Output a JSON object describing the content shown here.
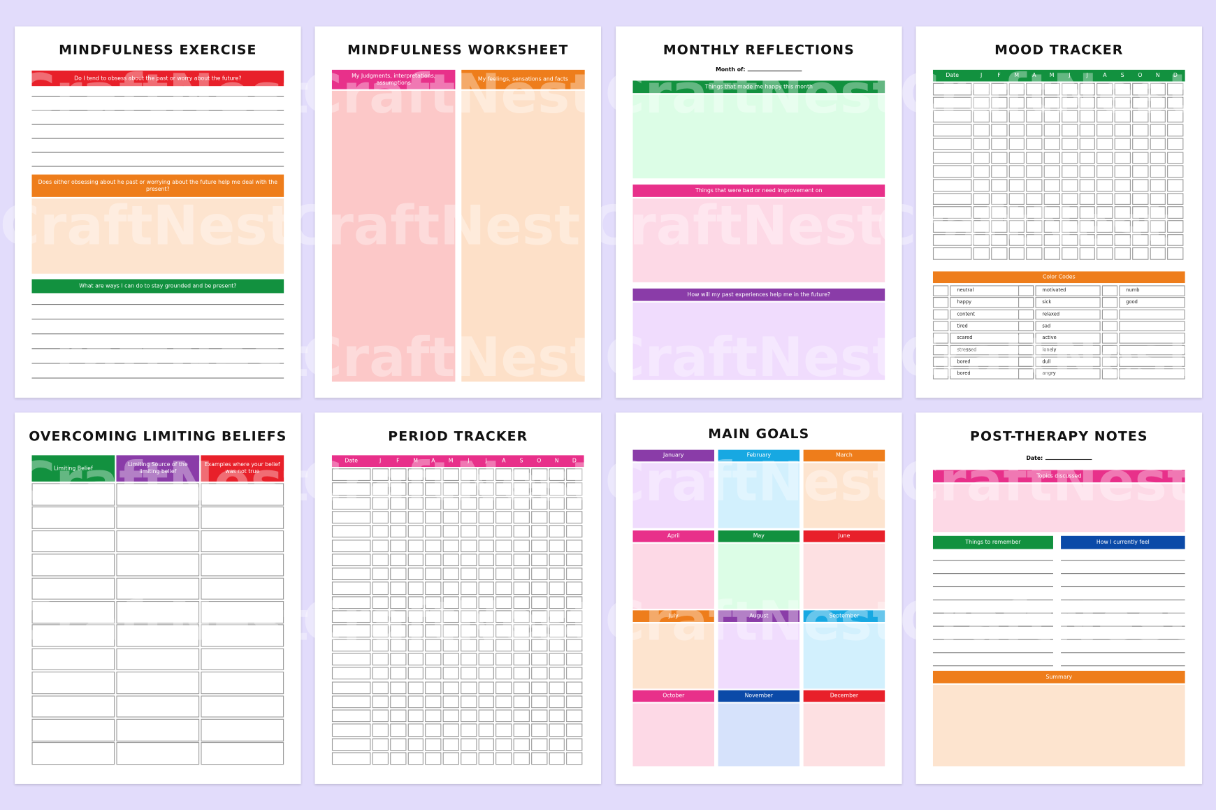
{
  "watermark": "CraftNest",
  "pages": [
    {
      "title": "MINDFULNESS EXERCISE",
      "sections": [
        "Do I tend to obsess about the past or worry about the future?",
        "Does either obsessing about he past or worrying about the future help me deal with the present?",
        "What are ways I can do to stay grounded and be present?"
      ]
    },
    {
      "title": "MINDFULNESS WORKSHEET",
      "columns": [
        "My Judgments, interpretations, assumptions",
        "My feelings, sensations and facts"
      ]
    },
    {
      "title": "MONTHLY REFLECTIONS",
      "month_label": "Month of:",
      "sections": [
        "Things that made me happy this month",
        "Things that were bad or need improvement on",
        "How will my past experiences help me in the future?"
      ]
    },
    {
      "title": "MOOD TRACKER",
      "header": [
        "Date",
        "J",
        "F",
        "M",
        "A",
        "M",
        "J",
        "J",
        "A",
        "S",
        "O",
        "N",
        "D"
      ],
      "color_codes_title": "Color Codes",
      "color_codes": [
        [
          "neutral",
          "happy",
          "content",
          "tired",
          "scared",
          "stressed",
          "bored",
          "bored"
        ],
        [
          "motivated",
          "sick",
          "relaxed",
          "sad",
          "active",
          "lonely",
          "dull",
          "angry"
        ],
        [
          "numb",
          "good"
        ]
      ]
    },
    {
      "title": "OVERCOMING LIMITING BELIEFS",
      "columns": [
        "Limiting Belief",
        "Limiting Source of the limiting belief",
        "Examples where your belief was not true"
      ]
    },
    {
      "title": "PERIOD TRACKER",
      "header": [
        "Date",
        "J",
        "F",
        "M",
        "A",
        "M",
        "J",
        "J",
        "A",
        "S",
        "O",
        "N",
        "D"
      ]
    },
    {
      "title": "MAIN GOALS",
      "months": [
        "January",
        "February",
        "March",
        "April",
        "May",
        "June",
        "July",
        "August",
        "September",
        "October",
        "November",
        "December"
      ]
    },
    {
      "title": "POST-THERAPY NOTES",
      "date_label": "Date:",
      "sections": [
        "Topics discussed",
        "Things to remember",
        "How I currently feel",
        "Summary"
      ]
    }
  ]
}
